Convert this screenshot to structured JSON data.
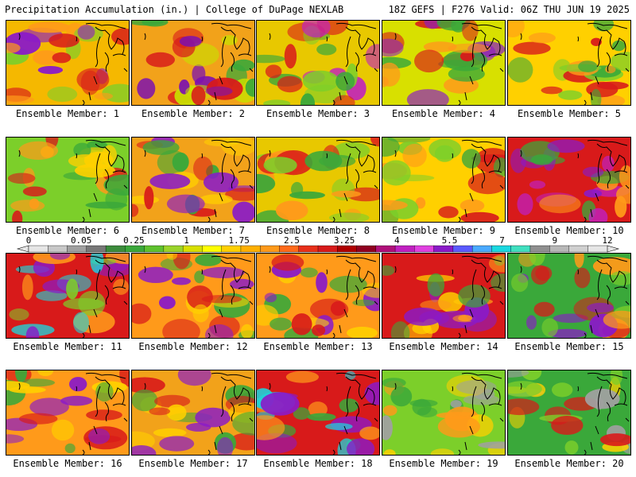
{
  "header": {
    "left": "Precipitation Accumulation (in.) | College of DuPage NEXLAB",
    "right": "18Z GEFS | F276 Valid: 06Z THU JUN 19 2025"
  },
  "members": [
    {
      "label": "Ensemble Member: 1",
      "fill": "#f5b800",
      "accents": [
        "#ff9a1a",
        "#d81a1a",
        "#8a1ac8",
        "#7ccf2a"
      ]
    },
    {
      "label": "Ensemble Member: 2",
      "fill": "#f2a21a",
      "accents": [
        "#d81a1a",
        "#7c10b0",
        "#c8e000",
        "#3aa83a"
      ]
    },
    {
      "label": "Ensemble Member: 3",
      "fill": "#e8c800",
      "accents": [
        "#3aa83a",
        "#d81a1a",
        "#c020c0",
        "#7ccf2a"
      ]
    },
    {
      "label": "Ensemble Member: 4",
      "fill": "#d8e000",
      "accents": [
        "#3aa83a",
        "#d81a1a",
        "#8a1ac8",
        "#ff9a1a"
      ]
    },
    {
      "label": "Ensemble Member: 5",
      "fill": "#ffd000",
      "accents": [
        "#3aa83a",
        "#d81a1a",
        "#ff9a1a",
        "#7ccf2a"
      ]
    },
    {
      "label": "Ensemble Member: 6",
      "fill": "#7ccf2a",
      "accents": [
        "#3aa83a",
        "#ffd000",
        "#ff9a1a",
        "#d81a1a"
      ]
    },
    {
      "label": "Ensemble Member: 7",
      "fill": "#f2a21a",
      "accents": [
        "#d81a1a",
        "#8a1ac8",
        "#ffd000",
        "#3aa83a"
      ]
    },
    {
      "label": "Ensemble Member: 8",
      "fill": "#e8c800",
      "accents": [
        "#3aa83a",
        "#ff9a1a",
        "#d81a1a",
        "#7ccf2a"
      ]
    },
    {
      "label": "Ensemble Member: 9",
      "fill": "#ffd000",
      "accents": [
        "#7ccf2a",
        "#ff9a1a",
        "#d81a1a",
        "#3aa83a"
      ]
    },
    {
      "label": "Ensemble Member: 10",
      "fill": "#d81a1a",
      "accents": [
        "#8a1ac8",
        "#c020c0",
        "#ff9a1a",
        "#3aa83a"
      ]
    },
    {
      "label": "Ensemble Member: 11",
      "fill": "#d81a1a",
      "accents": [
        "#8a1ac8",
        "#1ad8e0",
        "#ff9a1a",
        "#7ccf2a"
      ]
    },
    {
      "label": "Ensemble Member: 12",
      "fill": "#ff9a1a",
      "accents": [
        "#d81a1a",
        "#8a1ac8",
        "#3aa83a",
        "#ffd000"
      ]
    },
    {
      "label": "Ensemble Member: 13",
      "fill": "#ff9a1a",
      "accents": [
        "#d81a1a",
        "#3aa83a",
        "#8a1ac8",
        "#ffd000"
      ]
    },
    {
      "label": "Ensemble Member: 14",
      "fill": "#d81a1a",
      "accents": [
        "#8a1ac8",
        "#3aa83a",
        "#ff9a1a",
        "#ffd000"
      ]
    },
    {
      "label": "Ensemble Member: 15",
      "fill": "#3aa83a",
      "accents": [
        "#d81a1a",
        "#8a1ac8",
        "#7ccf2a",
        "#ff9a1a"
      ]
    },
    {
      "label": "Ensemble Member: 16",
      "fill": "#ff9a1a",
      "accents": [
        "#d81a1a",
        "#8a1ac8",
        "#3aa83a",
        "#ffd000"
      ]
    },
    {
      "label": "Ensemble Member: 17",
      "fill": "#f2a21a",
      "accents": [
        "#d81a1a",
        "#8a1ac8",
        "#ffd000",
        "#3aa83a"
      ]
    },
    {
      "label": "Ensemble Member: 18",
      "fill": "#d81a1a",
      "accents": [
        "#8a1ac8",
        "#1ad8e0",
        "#ff9a1a",
        "#3aa83a"
      ]
    },
    {
      "label": "Ensemble Member: 19",
      "fill": "#7ccf2a",
      "accents": [
        "#3aa83a",
        "#a0a0a0",
        "#ffd000",
        "#ff9a1a"
      ]
    },
    {
      "label": "Ensemble Member: 20",
      "fill": "#3aa83a",
      "accents": [
        "#7ccf2a",
        "#a0a0a0",
        "#ffd000",
        "#d81a1a"
      ]
    }
  ],
  "colorbar": {
    "tick_labels": [
      "0",
      "0.05",
      "0.25",
      "1",
      "1.75",
      "2.5",
      "3.25",
      "4",
      "5.5",
      "7",
      "9",
      "12"
    ],
    "colors": [
      "#e6e6e6",
      "#c8c8c8",
      "#a0a0a0",
      "#787878",
      "#3c8c3c",
      "#3aa83a",
      "#5ec22e",
      "#9ad42a",
      "#d8e000",
      "#ffff00",
      "#ffd000",
      "#ffb000",
      "#ff9a1a",
      "#ff6a1a",
      "#e8301a",
      "#d81a1a",
      "#b00000",
      "#900020",
      "#b0107a",
      "#c020c0",
      "#e040e0",
      "#8a1ac8",
      "#5a5aff",
      "#4aaaff",
      "#1ad8e0",
      "#40e0c0",
      "#909090",
      "#b8b8b8",
      "#d0d0d0",
      "#e6e6e6"
    ]
  }
}
